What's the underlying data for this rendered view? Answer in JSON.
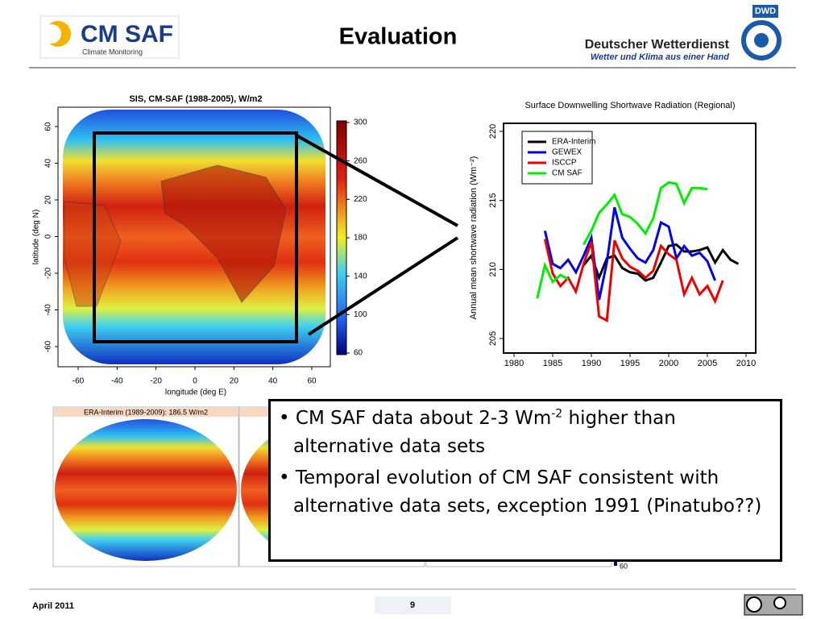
{
  "header": {
    "logo_text": "CM SAF",
    "logo_sub": "Climate Monitoring",
    "title": "Evaluation",
    "dwd_badge": "DWD",
    "dwd_name": "Deutscher Wetterdienst",
    "dwd_motto": "Wetter und Klima aus einer Hand"
  },
  "map": {
    "title": "SIS, CM-SAF (1988-2005), W/m2",
    "ylabel": "latitude (deg N)",
    "xlabel": "longitude (deg E)",
    "yticks": [
      60,
      40,
      20,
      0,
      -20,
      -40,
      -60
    ],
    "xticks": [
      -60,
      -40,
      -20,
      0,
      20,
      40,
      60
    ],
    "colorbar_ticks": [
      300,
      260,
      220,
      180,
      140,
      100,
      60
    ]
  },
  "chart_data": {
    "type": "line",
    "title": "Surface Downwelling Shortwave Radiation (Regional)",
    "ylabel": "Annual mean shortwave radiation (Wm⁻²)",
    "x": [
      1983,
      1984,
      1985,
      1986,
      1987,
      1988,
      1989,
      1990,
      1991,
      1992,
      1993,
      1994,
      1995,
      1996,
      1997,
      1998,
      1999,
      2000,
      2001,
      2002,
      2003,
      2004,
      2005,
      2006,
      2007,
      2008,
      2009
    ],
    "series": [
      {
        "name": "ERA-Interim",
        "color": "#000000",
        "values": [
          null,
          null,
          null,
          null,
          null,
          null,
          210.3,
          211.0,
          209.4,
          210.8,
          211.0,
          210.1,
          209.8,
          209.7,
          209.2,
          209.4,
          210.5,
          211.7,
          211.8,
          211.3,
          211.3,
          211.4,
          211.6,
          210.5,
          211.4,
          210.7,
          210.4
        ]
      },
      {
        "name": "GEWEX",
        "color": "#0000ee",
        "values": [
          null,
          212.8,
          210.4,
          210.1,
          210.7,
          209.8,
          211.0,
          212.3,
          207.8,
          210.5,
          214.5,
          212.3,
          211.5,
          210.8,
          210.5,
          211.4,
          213.4,
          213.1,
          210.8,
          211.7,
          211.0,
          211.2,
          210.6,
          209.2,
          null,
          null,
          null
        ]
      },
      {
        "name": "ISCCP",
        "color": "#ee0000",
        "values": [
          null,
          212.2,
          209.7,
          208.8,
          209.4,
          208.4,
          210.4,
          212.0,
          206.6,
          206.3,
          212.1,
          210.8,
          210.2,
          209.9,
          209.4,
          209.9,
          211.7,
          211.1,
          210.7,
          208.2,
          209.4,
          208.2,
          208.8,
          207.7,
          209.2,
          null,
          null
        ]
      },
      {
        "name": "CM SAF",
        "color": "#00ee00",
        "values": [
          207.9,
          210.3,
          209.1,
          209.6,
          209.3,
          null,
          211.8,
          212.8,
          214.1,
          214.7,
          215.4,
          214.0,
          213.8,
          213.3,
          212.6,
          213.7,
          215.9,
          216.3,
          216.2,
          214.8,
          215.9,
          215.9,
          215.8,
          null,
          null,
          null,
          null
        ]
      }
    ],
    "xlim": [
      1980,
      2010
    ],
    "xticks": [
      1980,
      1985,
      1990,
      1995,
      2000,
      2005,
      2010
    ],
    "ylim": [
      205,
      220
    ],
    "yticks": [
      205,
      210,
      215,
      220
    ],
    "legend": "upper left"
  },
  "panels": {
    "titles": [
      "ERA-Interim (1989-2009): 186.5 W/m2"
    ],
    "colorbar_label": "60"
  },
  "bullets": [
    {
      "before": "CM SAF data about 2-3 Wm",
      "sup": "-2",
      "after": " higher than alternative data sets"
    },
    {
      "text": "Temporal evolution of CM SAF consistent with alternative data sets, exception 1991 (Pinatubo??)"
    }
  ],
  "footer": {
    "date": "April 2011",
    "page": "9"
  }
}
